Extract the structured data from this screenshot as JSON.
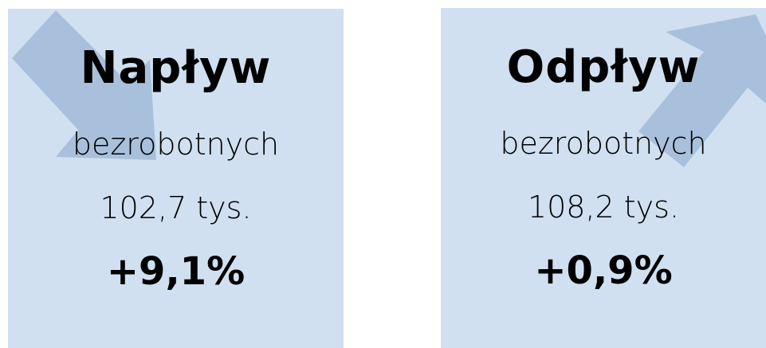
{
  "cards": [
    {
      "title": "Napływ",
      "subtitle": "bezrobotnych",
      "amount": "102,7 tys.",
      "change": "+9,1%"
    },
    {
      "title": "Odpływ",
      "subtitle": "bezrobotnych",
      "amount": "108,2 tys.",
      "change": "+0,9%"
    }
  ]
}
